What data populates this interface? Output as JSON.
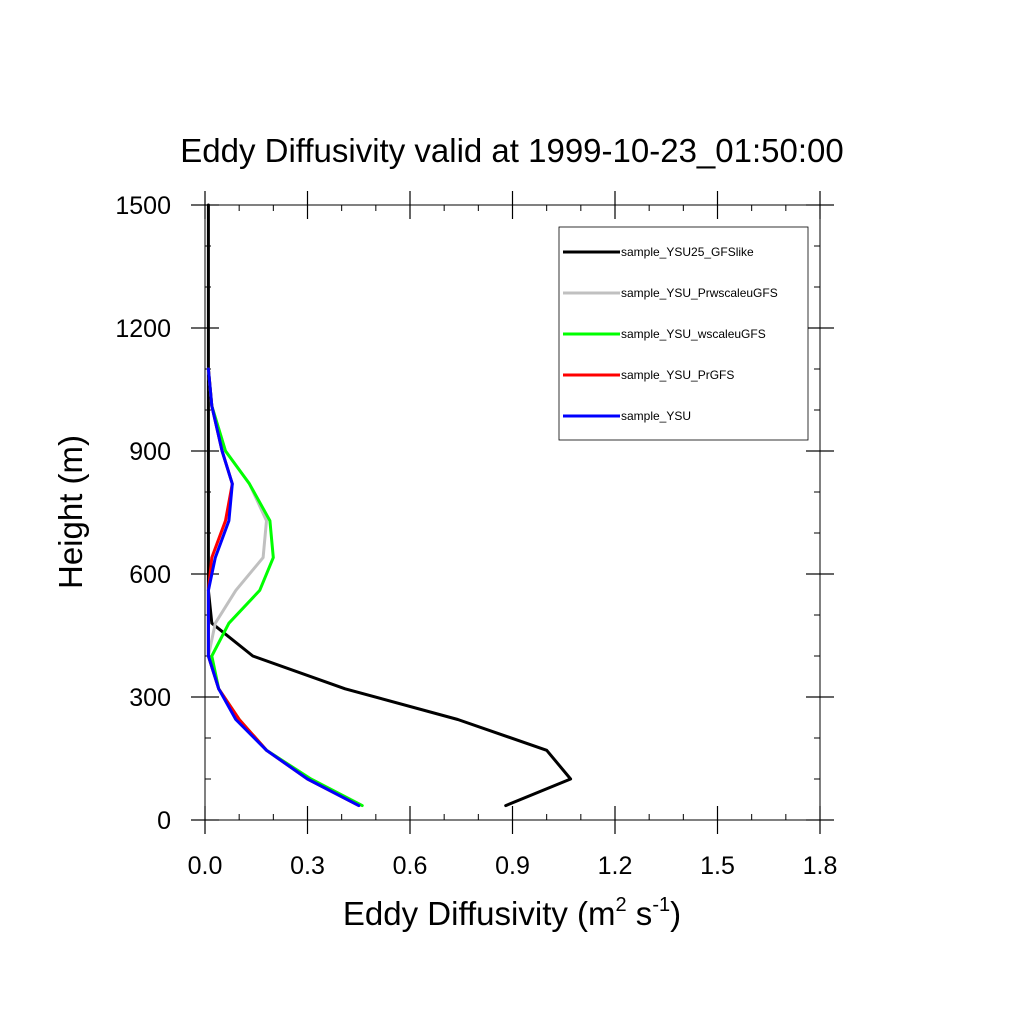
{
  "chart_data": {
    "type": "line",
    "title": "Eddy Diffusivity valid at 1999-10-23_01:50:00",
    "xlabel": {
      "main": "Eddy Diffusivity (m",
      "sup1": "2",
      "mid": " s",
      "sup2": "-1",
      "end": ")"
    },
    "ylabel": "Height (m)",
    "xlim": [
      0,
      1.8
    ],
    "ylim": [
      0,
      1500
    ],
    "xticks": [
      0,
      0.3,
      0.6,
      0.9,
      1.2,
      1.5,
      1.8
    ],
    "xtick_labels": [
      "0.0",
      "0.3",
      "0.6",
      "0.9",
      "1.2",
      "1.5",
      "1.8"
    ],
    "yticks": [
      0,
      300,
      600,
      900,
      1200,
      1500
    ],
    "ytick_labels": [
      "0",
      "300",
      "600",
      "900",
      "1200",
      "1500"
    ],
    "x_minor_step": 0.1,
    "y_minor_step": 100,
    "grid": false,
    "legend_position": "top-right",
    "series": [
      {
        "name": "sample_YSU25_GFSlike",
        "color": "#000000",
        "points": [
          [
            0.88,
            35
          ],
          [
            1.07,
            100
          ],
          [
            1.0,
            170
          ],
          [
            0.74,
            245
          ],
          [
            0.41,
            320
          ],
          [
            0.14,
            400
          ],
          [
            0.02,
            480
          ],
          [
            0.01,
            560
          ],
          [
            0.01,
            650
          ],
          [
            0.01,
            730
          ],
          [
            0.01,
            820
          ],
          [
            0.01,
            900
          ],
          [
            0.01,
            1000
          ],
          [
            0.01,
            1100
          ],
          [
            0.01,
            1200
          ],
          [
            0.01,
            1300
          ],
          [
            0.01,
            1400
          ],
          [
            0.01,
            1500
          ]
        ]
      },
      {
        "name": "sample_YSU_PrwscaleuGFS",
        "color": "#c0c0c0",
        "points": [
          [
            0.46,
            35
          ],
          [
            0.31,
            100
          ],
          [
            0.18,
            170
          ],
          [
            0.1,
            245
          ],
          [
            0.04,
            320
          ],
          [
            0.01,
            400
          ],
          [
            0.03,
            480
          ],
          [
            0.09,
            560
          ],
          [
            0.17,
            640
          ],
          [
            0.18,
            730
          ],
          [
            0.13,
            820
          ],
          [
            0.06,
            900
          ],
          [
            0.02,
            1010
          ],
          [
            0.01,
            1100
          ]
        ]
      },
      {
        "name": "sample_YSU_wscaleuGFS",
        "color": "#00ff00",
        "points": [
          [
            0.46,
            35
          ],
          [
            0.31,
            100
          ],
          [
            0.18,
            170
          ],
          [
            0.1,
            245
          ],
          [
            0.04,
            320
          ],
          [
            0.02,
            400
          ],
          [
            0.07,
            480
          ],
          [
            0.16,
            560
          ],
          [
            0.2,
            640
          ],
          [
            0.19,
            730
          ],
          [
            0.13,
            820
          ],
          [
            0.06,
            900
          ],
          [
            0.02,
            1010
          ],
          [
            0.01,
            1100
          ]
        ]
      },
      {
        "name": "sample_YSU_PrGFS",
        "color": "#ff0000",
        "points": [
          [
            0.45,
            35
          ],
          [
            0.3,
            100
          ],
          [
            0.18,
            170
          ],
          [
            0.1,
            245
          ],
          [
            0.04,
            320
          ],
          [
            0.01,
            400
          ],
          [
            0.01,
            480
          ],
          [
            0.01,
            560
          ],
          [
            0.02,
            640
          ],
          [
            0.06,
            730
          ],
          [
            0.08,
            820
          ],
          [
            0.05,
            900
          ],
          [
            0.02,
            1010
          ],
          [
            0.01,
            1100
          ]
        ]
      },
      {
        "name": "sample_YSU",
        "color": "#0000ff",
        "points": [
          [
            0.45,
            35
          ],
          [
            0.3,
            100
          ],
          [
            0.18,
            170
          ],
          [
            0.09,
            245
          ],
          [
            0.04,
            320
          ],
          [
            0.01,
            400
          ],
          [
            0.01,
            480
          ],
          [
            0.01,
            560
          ],
          [
            0.03,
            640
          ],
          [
            0.07,
            730
          ],
          [
            0.08,
            820
          ],
          [
            0.05,
            900
          ],
          [
            0.02,
            1010
          ],
          [
            0.01,
            1100
          ]
        ]
      }
    ]
  }
}
